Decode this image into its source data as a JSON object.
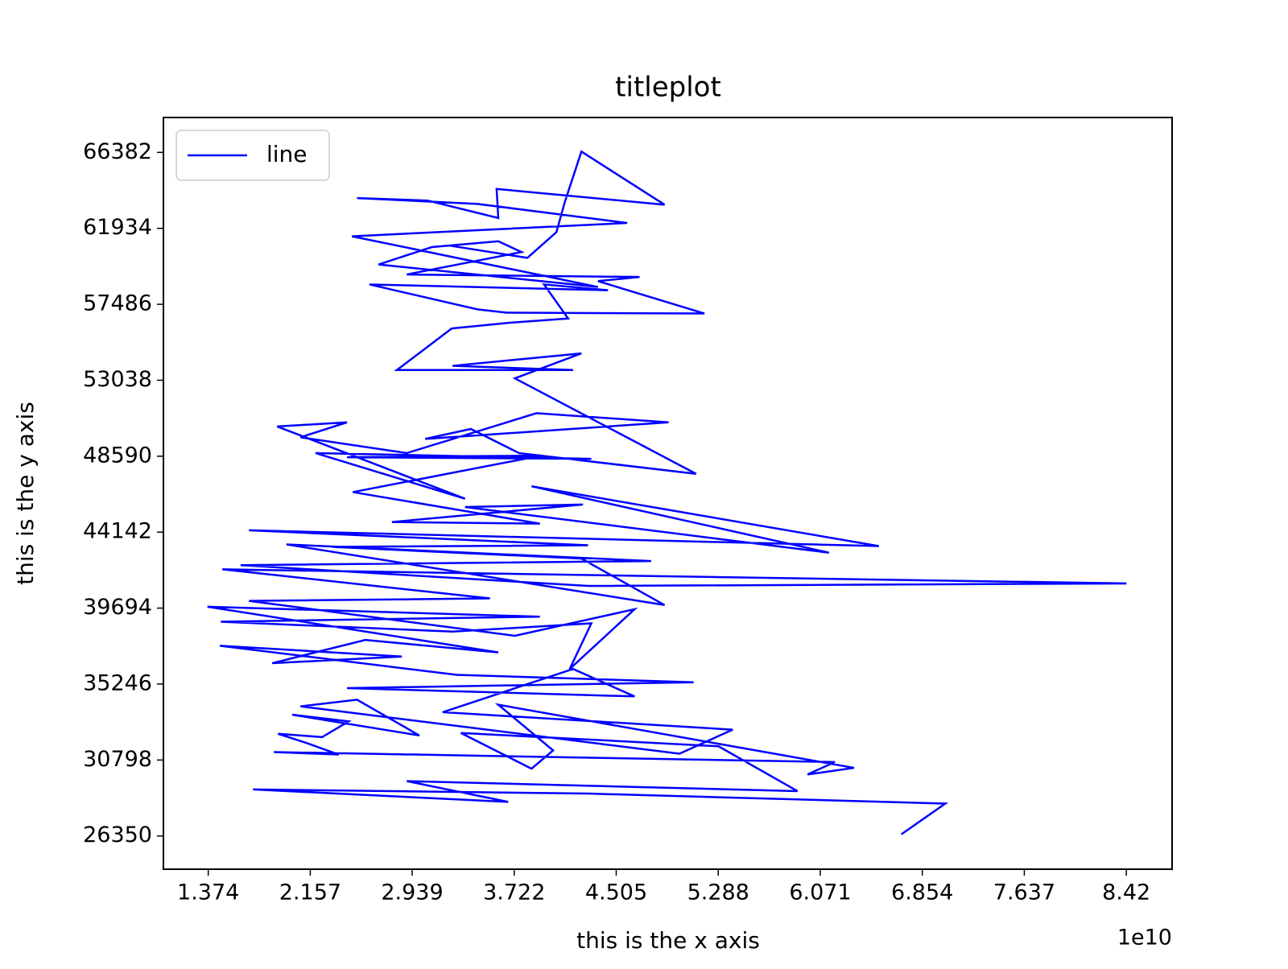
{
  "chart_data": {
    "type": "line",
    "title": "titleplot",
    "xlabel": "this is the x axis",
    "ylabel": "this is the y axis",
    "x_offset_label": "1e10",
    "legend": "upper left",
    "grid": false,
    "xlim": [
      1.03,
      8.771
    ],
    "ylim": [
      24404,
      68425
    ],
    "xticks": [
      1.374,
      2.157,
      2.939,
      3.722,
      4.505,
      5.288,
      6.071,
      6.854,
      7.637,
      8.42
    ],
    "yticks": [
      26350,
      30798,
      35246,
      39694,
      44142,
      48590,
      53038,
      57486,
      61934,
      66382
    ],
    "x": [
      6.693,
      7.031,
      4.289,
      1.718,
      3.676,
      2.898,
      5.896,
      5.29,
      3.313,
      3.855,
      4.021,
      3.6,
      6.33,
      5.973,
      6.183,
      1.878,
      2.375,
      2.146,
      1.91,
      2.248,
      2.452,
      2.018,
      2.994,
      2.516,
      2.082,
      4.99,
      5.399,
      3.173,
      4.174,
      4.646,
      2.439,
      5.099,
      3.281,
      1.463,
      2.86,
      1.865,
      2.579,
      3.6,
      1.368,
      3.919,
      1.47,
      3.249,
      4.314,
      4.148,
      4.646,
      3.727,
      1.687,
      3.536,
      1.482,
      8.421,
      4.289,
      1.623,
      4.773,
      1.974,
      4.876,
      4.238,
      2.324,
      4.289,
      1.687,
      6.521,
      3.855,
      6.138,
      3.345,
      4.25,
      2.784,
      3.919,
      2.484,
      3.932,
      2.439,
      4.314,
      2.197,
      3.345,
      1.903,
      2.439,
      2.082,
      2.898,
      3.893,
      4.907,
      3.039,
      3.389,
      3.759,
      5.118,
      3.727,
      4.238,
      3.249,
      4.174,
      2.822,
      3.243,
      3.696,
      4.136,
      3.951,
      4.442,
      2.611,
      3.44,
      3.664,
      5.182,
      4.365,
      4.684,
      2.898,
      3.778,
      3.6,
      3.09,
      2.681,
      4.365,
      2.477,
      4.589,
      3.44,
      2.516,
      3.058,
      3.6,
      3.587,
      4.876,
      4.238,
      4.11,
      4.046,
      3.823,
      3.217
    ],
    "series": [
      {
        "name": "line",
        "color": "#0000ff",
        "values": [
          26449,
          28248,
          28832,
          29075,
          28346,
          29562,
          28978,
          31604,
          32382,
          30291,
          31361,
          34036,
          30340,
          29951,
          30680,
          31264,
          31118,
          31750,
          32334,
          32139,
          33064,
          33453,
          32237,
          34328,
          33939,
          31167,
          32577,
          33599,
          36128,
          34523,
          35009,
          35350,
          35787,
          37490,
          36858,
          36468,
          37830,
          37101,
          39776,
          39192,
          38900,
          38317,
          38803,
          36128,
          39630,
          38074,
          40116,
          40262,
          41965,
          41138,
          40992,
          42208,
          42451,
          43424,
          39873,
          42597,
          43278,
          43375,
          44251,
          43327,
          46829,
          42938,
          45613,
          45759,
          44737,
          44640,
          46488,
          48628,
          48531,
          48434,
          48774,
          46099,
          50331,
          50574,
          49698,
          48774,
          51109,
          50574,
          49601,
          50185,
          48774,
          47558,
          53152,
          54611,
          53882,
          53638,
          53638,
          56070,
          56411,
          56654,
          58648,
          58308,
          58648,
          57189,
          56994,
          56946,
          58843,
          59086,
          59232,
          60545,
          61178,
          60837,
          59816,
          58502,
          61469,
          62248,
          63366,
          63707,
          63561,
          62539,
          64242,
          63318,
          66431,
          63464,
          61713,
          60205,
          60934
        ]
      }
    ]
  }
}
